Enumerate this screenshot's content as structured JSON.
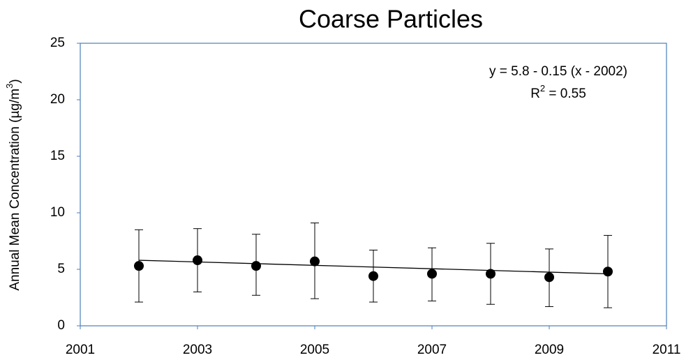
{
  "chart_data": {
    "type": "scatter",
    "title": "Coarse Particles",
    "y_label": [
      "Annual Mean Concentration (µg/m",
      "3",
      ")"
    ],
    "x": [
      2002,
      2003,
      2004,
      2005,
      2006,
      2007,
      2008,
      2009,
      2010
    ],
    "values": [
      5.3,
      5.8,
      5.3,
      5.7,
      4.4,
      4.6,
      4.6,
      4.3,
      4.8
    ],
    "upper": [
      8.5,
      8.6,
      8.1,
      9.1,
      6.7,
      6.9,
      7.3,
      6.8,
      8.0
    ],
    "lower": [
      2.1,
      3.0,
      2.7,
      2.4,
      2.1,
      2.2,
      1.9,
      1.7,
      1.6
    ],
    "color": "#000000",
    "trendline": {
      "x": [
        2002,
        2010
      ],
      "values": [
        5.8,
        4.6
      ]
    },
    "annotation": [
      "y = 5.8 - 0.15 (x - 2002)",
      "R",
      "2",
      " = 0.55"
    ],
    "xlim": [
      2001,
      2011
    ],
    "xticks": [
      2001,
      2003,
      2005,
      2007,
      2009,
      2011
    ],
    "ylim": [
      0,
      25
    ],
    "yticks": [
      0,
      5,
      10,
      15,
      20,
      25
    ]
  }
}
